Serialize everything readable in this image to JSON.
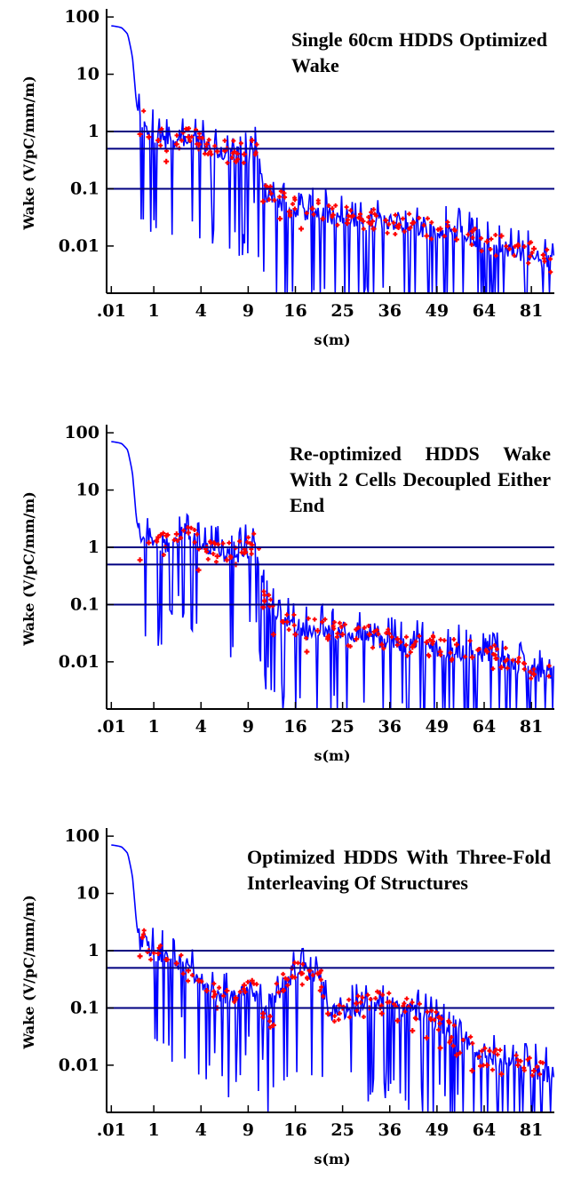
{
  "chart_data": [
    {
      "type": "line",
      "title": "Single 60cm HDDS Optimized Wake",
      "xlabel": "s(m)",
      "ylabel": "Wake (V/pC/mm/m)",
      "x_scale": "sqrt",
      "y_scale": "log",
      "xlim": [
        0,
        90
      ],
      "ylim": [
        0.0015,
        120
      ],
      "xtick_labels": [
        ".01",
        "1",
        "4",
        "9",
        "16",
        "25",
        "36",
        "49",
        "64",
        "81"
      ],
      "ytick_labels": [
        "100",
        "10",
        "1",
        "0.1",
        "0.01"
      ],
      "hlines": [
        1,
        0.5,
        0.1
      ],
      "grid": false,
      "colors": {
        "envelope": "#0000ff",
        "points": "#ff0000",
        "hlines": "#000080",
        "frame": "#000000"
      },
      "series": [
        {
          "x": [
            0.01,
            0.1,
            0.2,
            0.3,
            0.4,
            0.5,
            0.6,
            0.7,
            0.8,
            1,
            1.5,
            2.2,
            3,
            4,
            5,
            6,
            7,
            8,
            9,
            10,
            11,
            12,
            14,
            16,
            18,
            20,
            25,
            30,
            36,
            42,
            49,
            56,
            64,
            72,
            81,
            88
          ],
          "y": [
            70,
            65,
            50,
            20,
            3,
            1.6,
            2,
            1.2,
            0.9,
            1,
            0.7,
            0.6,
            0.9,
            0.7,
            0.6,
            0.5,
            0.5,
            0.45,
            0.45,
            0.5,
            0.12,
            0.08,
            0.06,
            0.05,
            0.04,
            0.045,
            0.035,
            0.03,
            0.03,
            0.025,
            0.022,
            0.02,
            0.012,
            0.01,
            0.008,
            0.006
          ]
        },
        {
          "x": [
            0.5,
            0.8,
            1.2,
            1.6,
            2.2,
            3,
            3.8,
            4.5,
            5.5,
            6.5,
            7.5,
            8.5,
            9.5,
            11,
            12,
            13.5,
            15,
            17,
            19,
            21,
            23,
            26,
            29,
            32,
            35,
            38,
            42,
            46,
            50,
            55,
            60,
            65,
            70,
            76,
            82
          ],
          "y": [
            0.9,
            0.8,
            0.7,
            0.3,
            0.6,
            0.8,
            0.5,
            0.6,
            0.45,
            0.5,
            0.3,
            0.4,
            0.7,
            0.06,
            0.1,
            0.03,
            0.04,
            0.02,
            0.045,
            0.03,
            0.035,
            0.025,
            0.03,
            0.02,
            0.028,
            0.022,
            0.025,
            0.015,
            0.02,
            0.013,
            0.018,
            0.012,
            0.015,
            0.01,
            0.009
          ]
        }
      ]
    },
    {
      "type": "line",
      "title": "Re-optimized HDDS Wake With 2 Cells Decoupled Either End",
      "xlabel": "s(m)",
      "ylabel": "Wake (V/pC/mm/m)",
      "x_scale": "sqrt",
      "y_scale": "log",
      "xlim": [
        0,
        90
      ],
      "ylim": [
        0.0015,
        120
      ],
      "xtick_labels": [
        ".01",
        "1",
        "4",
        "9",
        "16",
        "25",
        "36",
        "49",
        "64",
        "81"
      ],
      "ytick_labels": [
        "100",
        "10",
        "1",
        "0.1",
        "0.01"
      ],
      "hlines": [
        1,
        0.5,
        0.1
      ],
      "grid": false,
      "colors": {
        "envelope": "#0000ff",
        "points": "#ff0000",
        "hlines": "#000080",
        "frame": "#000000"
      },
      "series": [
        {
          "x": [
            0.01,
            0.1,
            0.2,
            0.3,
            0.4,
            0.5,
            0.6,
            0.8,
            1,
            1.5,
            2,
            2.5,
            3,
            3.5,
            4,
            5,
            6,
            7,
            8,
            9,
            10,
            10.5,
            11,
            12,
            14,
            16,
            18,
            20,
            25,
            30,
            36,
            42,
            49,
            56,
            64,
            72,
            81,
            88
          ],
          "y": [
            70,
            65,
            50,
            20,
            3,
            1.6,
            1.4,
            1.3,
            1.2,
            1.3,
            1.5,
            1.7,
            1.8,
            1.5,
            1,
            1,
            0.9,
            0.8,
            0.9,
            1.1,
            1.3,
            0.6,
            0.2,
            0.09,
            0.06,
            0.05,
            0.04,
            0.04,
            0.035,
            0.03,
            0.025,
            0.022,
            0.02,
            0.018,
            0.015,
            0.012,
            0.008,
            0.006
          ]
        },
        {
          "x": [
            0.5,
            0.8,
            1.2,
            1.6,
            2.2,
            3,
            3.8,
            4.5,
            5.5,
            6.5,
            7.5,
            8.5,
            9.5,
            11,
            12.5,
            14,
            16,
            18,
            20,
            22,
            25,
            28,
            31,
            34,
            38,
            42,
            46,
            50,
            55,
            60,
            65,
            70,
            76,
            82
          ],
          "y": [
            0.6,
            1.2,
            1.5,
            1.6,
            1.7,
            1.8,
            0.4,
            1,
            0.7,
            0.6,
            0.5,
            0.8,
            1.1,
            0.09,
            0.03,
            0.05,
            0.03,
            0.015,
            0.035,
            0.025,
            0.03,
            0.025,
            0.03,
            0.02,
            0.025,
            0.018,
            0.022,
            0.015,
            0.02,
            0.012,
            0.015,
            0.008,
            0.01,
            0.006
          ]
        }
      ]
    },
    {
      "type": "line",
      "title": "Optimized HDDS With Three-Fold Interleaving Of Structures",
      "xlabel": "s(m)",
      "ylabel": "Wake (V/pC/mm/m)",
      "x_scale": "sqrt",
      "y_scale": "log",
      "xlim": [
        0,
        90
      ],
      "ylim": [
        0.0015,
        120
      ],
      "xtick_labels": [
        ".01",
        "1",
        "4",
        "9",
        "16",
        "25",
        "36",
        "49",
        "64",
        "81"
      ],
      "ytick_labels": [
        "100",
        "10",
        "1",
        "0.1",
        "0.01"
      ],
      "hlines": [
        1,
        0.5,
        0.1
      ],
      "grid": false,
      "colors": {
        "envelope": "#0000ff",
        "points": "#ff0000",
        "hlines": "#000080",
        "frame": "#000000"
      },
      "series": [
        {
          "x": [
            0.01,
            0.1,
            0.2,
            0.3,
            0.4,
            0.5,
            0.6,
            0.8,
            1,
            1.5,
            2,
            3,
            4,
            5,
            6,
            7,
            8,
            9,
            10,
            11,
            12,
            13,
            14,
            15,
            16,
            17,
            18,
            19,
            20,
            21,
            22,
            25,
            30,
            36,
            42,
            49,
            56,
            64,
            72,
            81,
            88
          ],
          "y": [
            70,
            65,
            50,
            20,
            3,
            1.2,
            2,
            1.2,
            1,
            0.9,
            0.7,
            0.5,
            0.35,
            0.2,
            0.15,
            0.2,
            0.25,
            0.3,
            0.2,
            0.1,
            0.08,
            0.2,
            0.3,
            0.4,
            0.45,
            0.45,
            0.45,
            0.45,
            0.4,
            0.3,
            0.1,
            0.1,
            0.12,
            0.15,
            0.1,
            0.06,
            0.03,
            0.015,
            0.012,
            0.01,
            0.008
          ]
        },
        {
          "x": [
            0.5,
            0.8,
            1.2,
            1.6,
            2.2,
            3,
            3.8,
            4.5,
            5.5,
            6.5,
            7.5,
            8.5,
            9.5,
            11,
            12.5,
            14,
            15.5,
            17,
            18.5,
            20,
            22,
            25,
            28,
            31,
            34,
            38,
            42,
            46,
            50,
            55,
            60,
            65,
            70,
            76,
            82
          ],
          "y": [
            0.8,
            1,
            0.9,
            0.7,
            0.6,
            0.45,
            0.3,
            0.2,
            0.1,
            0.2,
            0.15,
            0.25,
            0.3,
            0.08,
            0.05,
            0.2,
            0.35,
            0.4,
            0.45,
            0.4,
            0.08,
            0.1,
            0.12,
            0.1,
            0.08,
            0.06,
            0.04,
            0.03,
            0.02,
            0.015,
            0.008,
            0.01,
            0.007,
            0.01,
            0.008
          ]
        }
      ]
    }
  ]
}
